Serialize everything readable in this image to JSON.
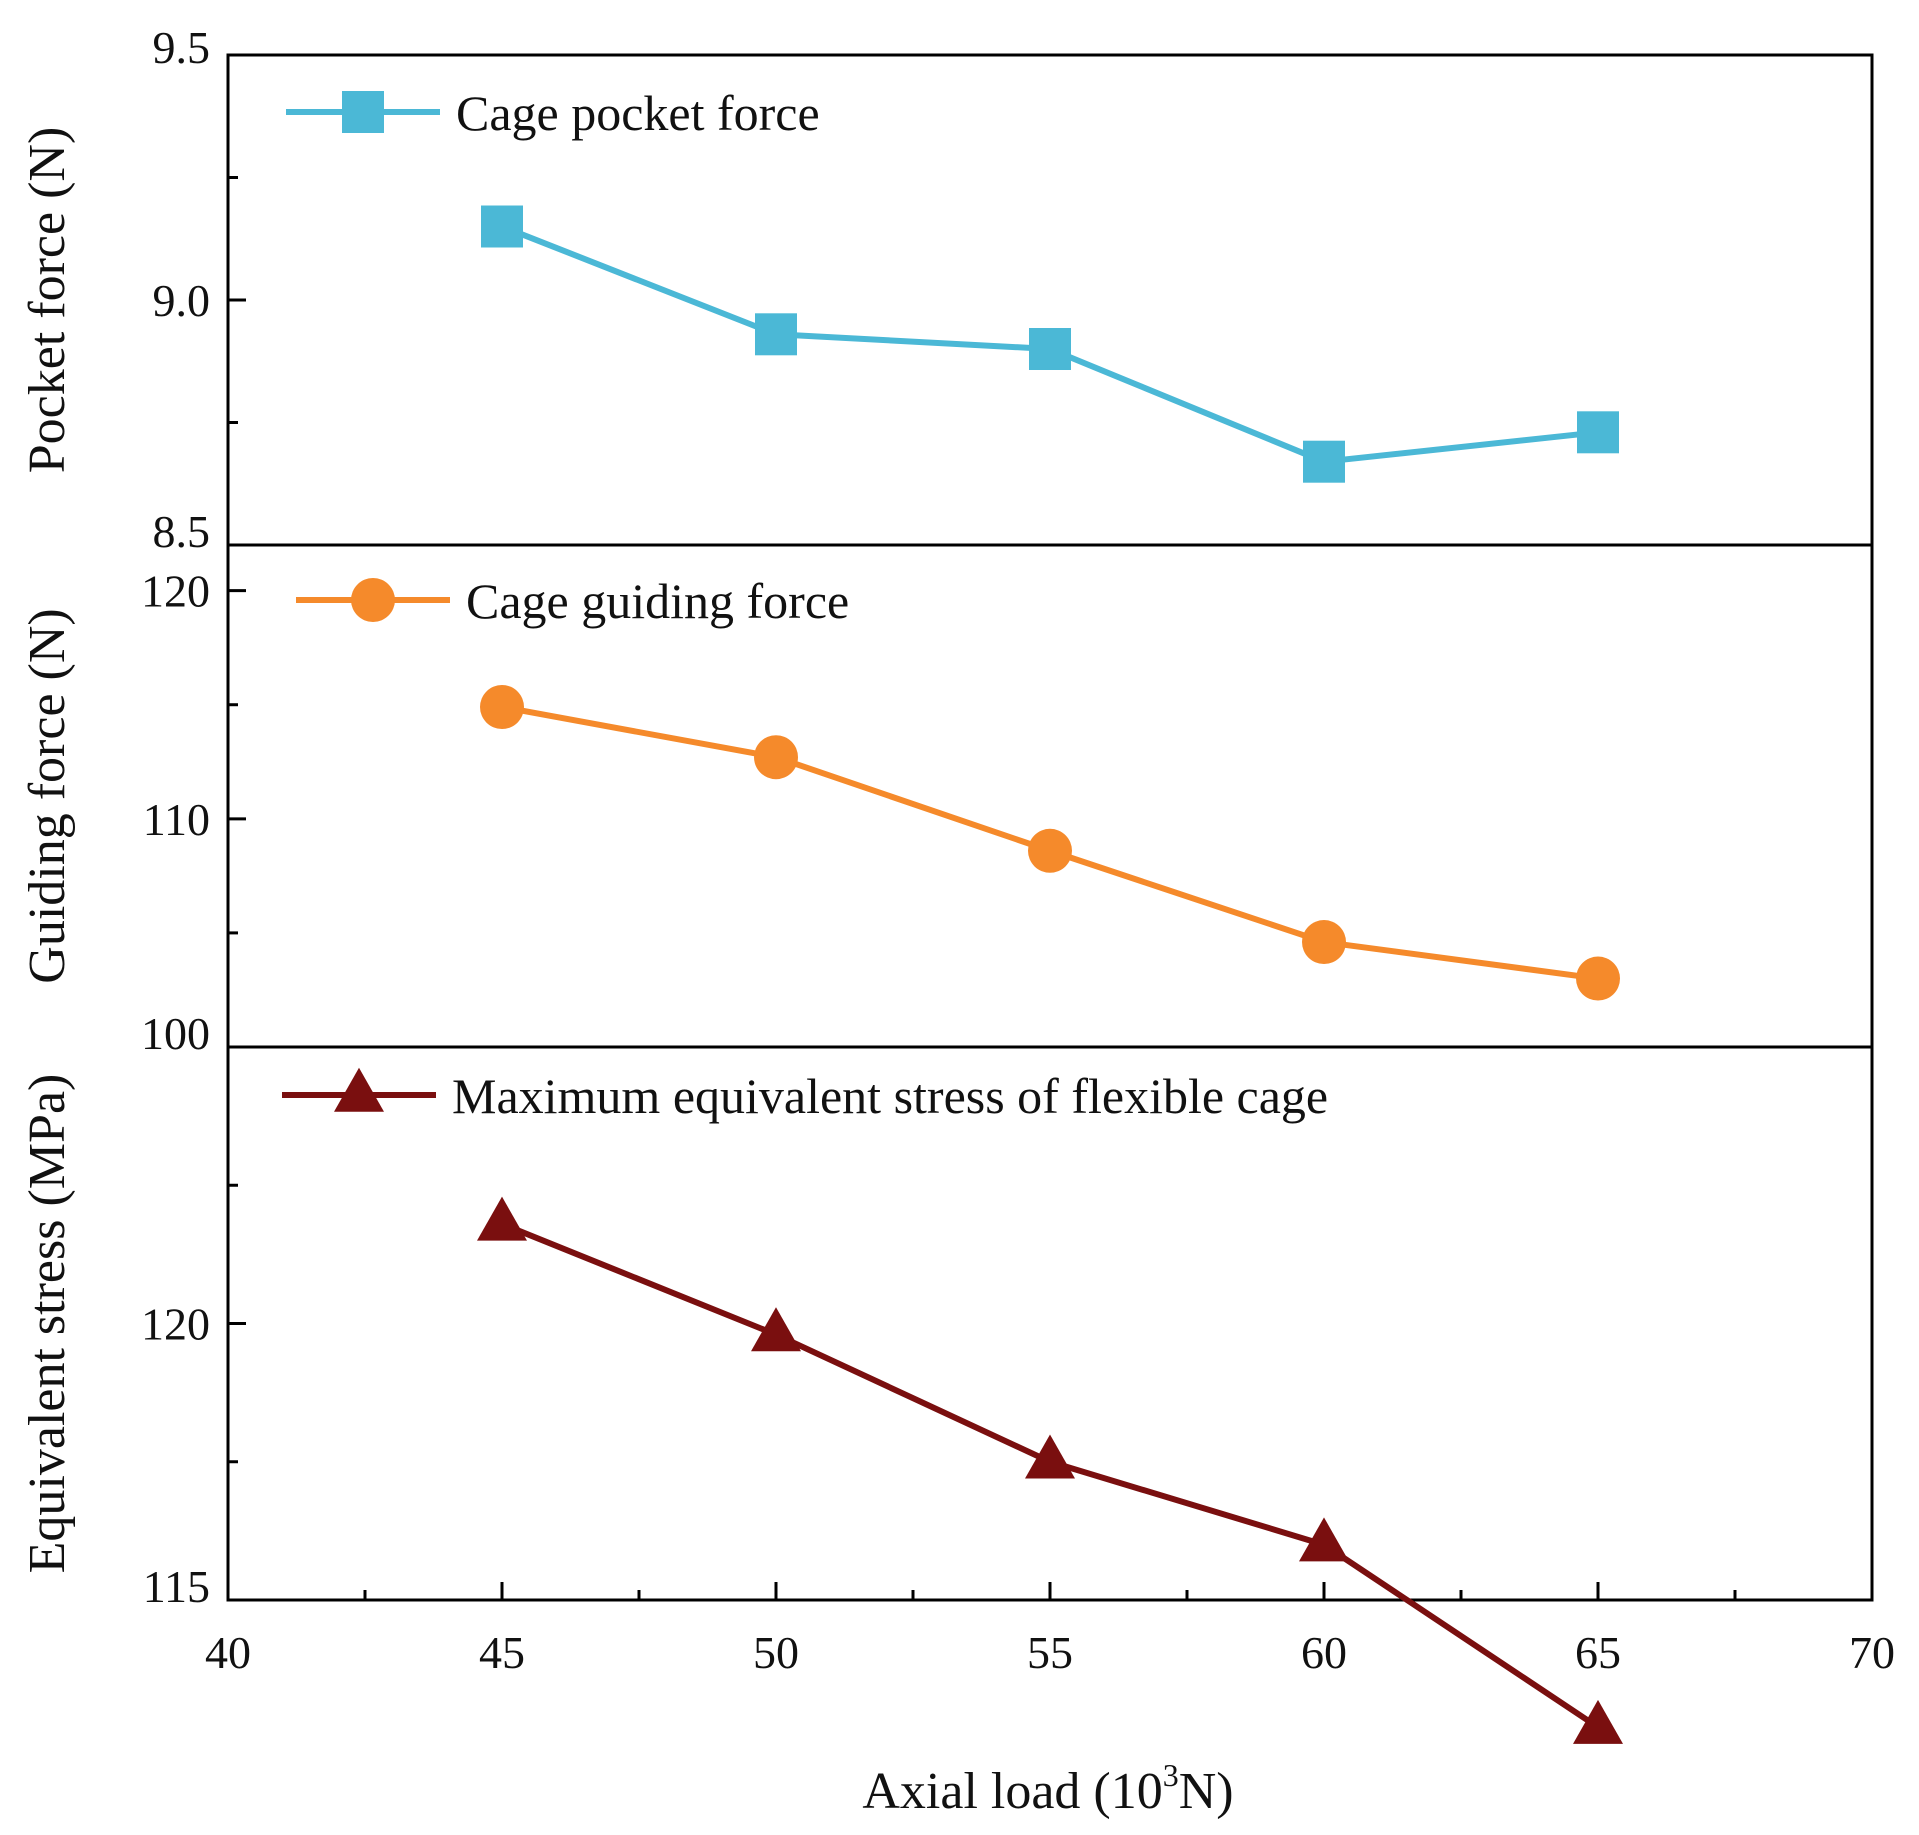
{
  "chart_data": {
    "type": "line",
    "xlabel": "Axial load (10³N)",
    "xlabel_parts": {
      "base": "Axial load (10",
      "sup": "3",
      "tail": "N)"
    },
    "x": [
      45,
      50,
      55,
      60,
      65
    ],
    "xlim": [
      40,
      70
    ],
    "x_ticks": [
      40,
      45,
      50,
      55,
      60,
      65,
      70
    ],
    "x_tick_labels": [
      "40",
      "45",
      "50",
      "55",
      "60",
      "65",
      "70"
    ],
    "grid": false,
    "panels": [
      {
        "id": "pocket",
        "ylabel": "Pocket force (N)",
        "ylim": [
          8.5,
          9.5
        ],
        "y_ticks": [
          8.5,
          9.0,
          9.5
        ],
        "y_tick_labels": [
          "8.5",
          "9.0",
          "9.5"
        ],
        "y_minor": [
          8.75,
          9.25
        ],
        "series": [
          {
            "name": "Cage pocket force",
            "marker": "square",
            "color": "#4BB8D6",
            "values": [
              9.15,
              8.93,
              8.9,
              8.67,
              8.73
            ]
          }
        ]
      },
      {
        "id": "guiding",
        "ylabel": "Guiding force (N)",
        "ylim": [
          100,
          122
        ],
        "y_ticks": [
          100,
          110,
          120
        ],
        "y_tick_labels": [
          "100",
          "110",
          "120"
        ],
        "y_minor": [
          105,
          115
        ],
        "series": [
          {
            "name": "Cage guiding force",
            "marker": "circle",
            "color": "#F58A2B",
            "values": [
              114.9,
              112.7,
              108.6,
              104.6,
              103.0
            ]
          }
        ]
      },
      {
        "id": "stress",
        "ylabel": "Equivalent stress (MPa)",
        "ylim": [
          115,
          125
        ],
        "y_ticks": [
          115,
          120
        ],
        "y_tick_labels": [
          "115",
          "120"
        ],
        "y_minor": [
          117.5,
          122.5
        ],
        "series": [
          {
            "name": "Maximum equivalent stress of flexible cage",
            "marker": "triangle",
            "color": "#7A0F0F",
            "values": [
              121.8,
              119.8,
              117.5,
              116.0,
              112.7
            ]
          }
        ]
      }
    ]
  }
}
